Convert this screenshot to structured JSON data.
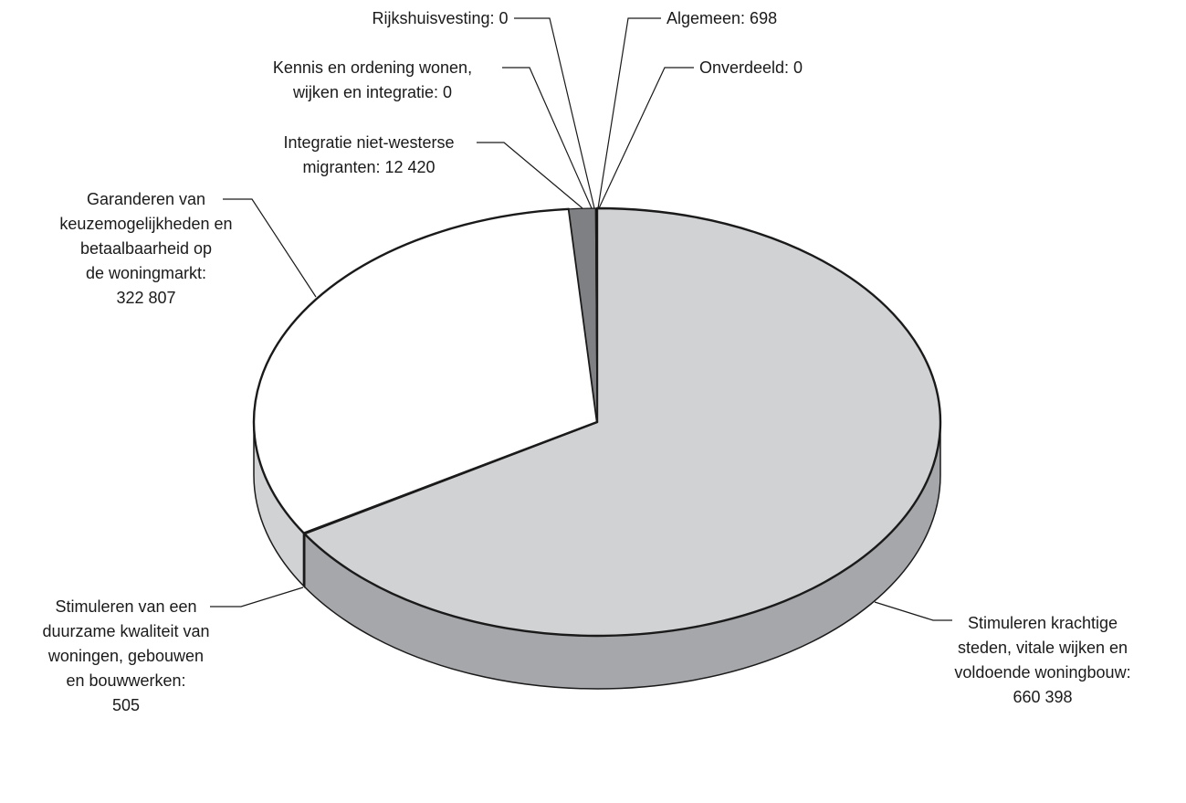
{
  "chart_data": {
    "type": "pie",
    "style": "3d",
    "title": "",
    "slices": [
      {
        "key": "stimuleren_krachtige_steden",
        "label_lines": [
          "Stimuleren krachtige",
          "steden, vitale wijken en",
          "voldoende woningbouw:",
          "660 398"
        ],
        "value": 660398,
        "color": "#d1d2d4",
        "side_color": "#a6a7aa"
      },
      {
        "key": "stimuleren_duurzame_kwaliteit",
        "label_lines": [
          "Stimuleren van een",
          "duurzame kwaliteit van",
          "woningen, gebouwen",
          "en bouwwerken:",
          "505"
        ],
        "value": 505,
        "color": "#d1d2d4",
        "side_color": "#d1d2d4"
      },
      {
        "key": "garanderen_keuzemogelijkheden",
        "label_lines": [
          "Garanderen van",
          "keuzemogelijkheden en",
          "betaalbaarheid op",
          "de woningmarkt:",
          "322 807"
        ],
        "value": 322807,
        "color": "#ffffff",
        "side_color": "#d1d2d4"
      },
      {
        "key": "integratie_niet_westerse",
        "label_lines": [
          "Integratie niet-westerse",
          "migranten: 12 420"
        ],
        "value": 12420,
        "color": "#7f8083",
        "side_color": "#7f8083"
      },
      {
        "key": "kennis_en_ordening",
        "label_lines": [
          "Kennis en ordening wonen,",
          "wijken en integratie: 0"
        ],
        "value": 0,
        "color": "#7f8083",
        "side_color": "#7f8083"
      },
      {
        "key": "rijkshuisvesting",
        "label_lines": [
          "Rijkshuisvesting: 0"
        ],
        "value": 0,
        "color": "#7f8083",
        "side_color": "#7f8083"
      },
      {
        "key": "algemeen",
        "label_lines": [
          "Algemeen: 698"
        ],
        "value": 698,
        "color": "#000000",
        "side_color": "#000000"
      },
      {
        "key": "onverdeeld",
        "label_lines": [
          "Onverdeeld: 0"
        ],
        "value": 0,
        "color": "#7f8083",
        "side_color": "#7f8083"
      }
    ]
  }
}
